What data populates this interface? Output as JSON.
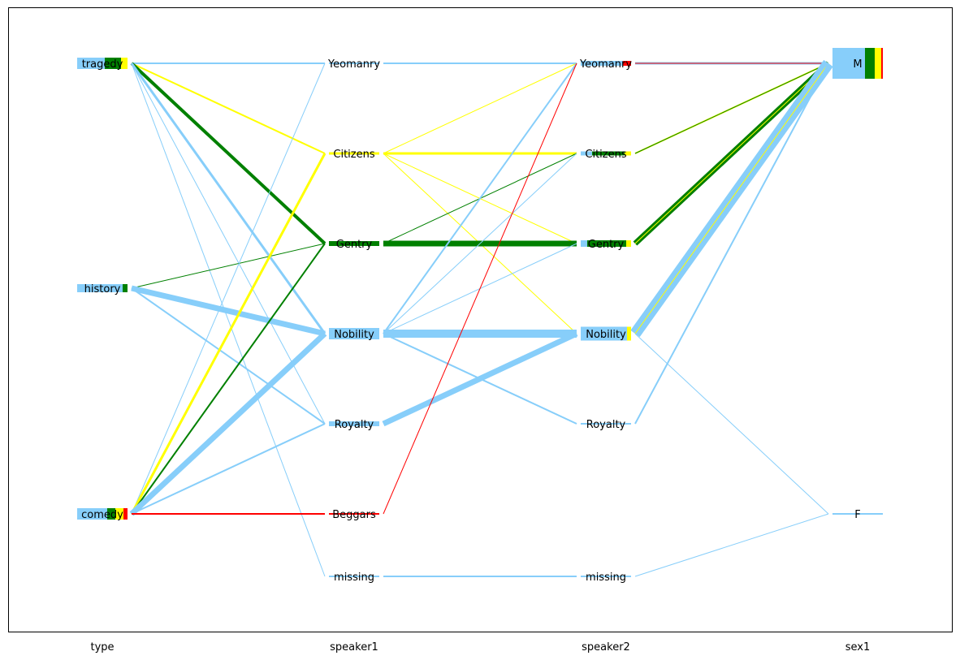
{
  "chart_data": {
    "type": "parallel-sets",
    "title": "",
    "xlabel": "",
    "ylabel": "",
    "dimensions": [
      "type",
      "speaker1",
      "speaker2",
      "sex1"
    ],
    "categories": {
      "type": [
        "tragedy",
        "history",
        "comedy"
      ],
      "speaker1": [
        "Yeomanry",
        "Citizens",
        "Gentry",
        "Nobility",
        "Royalty",
        "Beggars",
        "missing"
      ],
      "speaker2": [
        "Yeomanry",
        "Citizens",
        "Gentry",
        "Nobility",
        "Royalty",
        "missing"
      ],
      "sex1": [
        "M",
        "F"
      ]
    },
    "colors": {
      "nobility": "#87CEFA",
      "gentry": "#008000",
      "citizens": "#FFFF00",
      "beggars": "#FF0000"
    },
    "node_segments": {
      "type": {
        "tragedy": [
          [
            "nobility",
            34
          ],
          [
            "gentry",
            20
          ],
          [
            "citizens",
            8
          ]
        ],
        "history": [
          [
            "nobility",
            56
          ],
          [
            "gentry",
            6
          ]
        ],
        "comedy": [
          [
            "nobility",
            37
          ],
          [
            "gentry",
            10
          ],
          [
            "citizens",
            10
          ],
          [
            "beggars",
            5
          ]
        ]
      },
      "speaker1": {
        "Yeomanry": [
          [
            "nobility",
            2
          ]
        ],
        "Citizens": [
          [
            "citizens",
            3
          ]
        ],
        "Gentry": [
          [
            "gentry",
            62
          ]
        ],
        "Nobility": [
          [
            "nobility",
            62
          ]
        ],
        "Royalty": [
          [
            "nobility",
            62
          ]
        ],
        "Beggars": [
          [
            "beggars",
            2
          ]
        ],
        "missing": [
          [
            "nobility",
            2
          ]
        ]
      },
      "speaker2": {
        "Yeomanry": [
          [
            "nobility",
            52
          ],
          [
            "beggars",
            10
          ]
        ],
        "Citizens": [
          [
            "nobility",
            14
          ],
          [
            "gentry",
            40
          ],
          [
            "citizens",
            8
          ]
        ],
        "Gentry": [
          [
            "nobility",
            8
          ],
          [
            "gentry",
            48
          ],
          [
            "citizens",
            6
          ]
        ],
        "Nobility": [
          [
            "nobility",
            57
          ],
          [
            "citizens",
            5
          ]
        ],
        "Royalty": [
          [
            "nobility",
            2
          ]
        ],
        "missing": [
          [
            "nobility",
            2
          ]
        ]
      },
      "sex1": {
        "M": [
          [
            "nobility",
            40
          ],
          [
            "gentry",
            12
          ],
          [
            "citizens",
            8
          ],
          [
            "beggars",
            2
          ]
        ],
        "F": [
          [
            "nobility",
            62
          ]
        ]
      }
    },
    "flows": [
      {
        "from": [
          "type",
          "tragedy"
        ],
        "to": [
          "speaker1",
          "Yeomanry"
        ],
        "color": "nobility",
        "weight": 2
      },
      {
        "from": [
          "type",
          "tragedy"
        ],
        "to": [
          "speaker1",
          "Citizens"
        ],
        "color": "citizens",
        "weight": 2
      },
      {
        "from": [
          "type",
          "tragedy"
        ],
        "to": [
          "speaker1",
          "Gentry"
        ],
        "color": "gentry",
        "weight": 4
      },
      {
        "from": [
          "type",
          "tragedy"
        ],
        "to": [
          "speaker1",
          "Nobility"
        ],
        "color": "nobility",
        "weight": 3
      },
      {
        "from": [
          "type",
          "tragedy"
        ],
        "to": [
          "speaker1",
          "Royalty"
        ],
        "color": "nobility",
        "weight": 1
      },
      {
        "from": [
          "type",
          "tragedy"
        ],
        "to": [
          "speaker1",
          "missing"
        ],
        "color": "nobility",
        "weight": 1
      },
      {
        "from": [
          "type",
          "history"
        ],
        "to": [
          "speaker1",
          "Gentry"
        ],
        "color": "gentry",
        "weight": 1
      },
      {
        "from": [
          "type",
          "history"
        ],
        "to": [
          "speaker1",
          "Nobility"
        ],
        "color": "nobility",
        "weight": 7
      },
      {
        "from": [
          "type",
          "history"
        ],
        "to": [
          "speaker1",
          "Royalty"
        ],
        "color": "nobility",
        "weight": 2
      },
      {
        "from": [
          "type",
          "comedy"
        ],
        "to": [
          "speaker1",
          "Yeomanry"
        ],
        "color": "nobility",
        "weight": 1
      },
      {
        "from": [
          "type",
          "comedy"
        ],
        "to": [
          "speaker1",
          "Citizens"
        ],
        "color": "citizens",
        "weight": 3
      },
      {
        "from": [
          "type",
          "comedy"
        ],
        "to": [
          "speaker1",
          "Gentry"
        ],
        "color": "gentry",
        "weight": 2
      },
      {
        "from": [
          "type",
          "comedy"
        ],
        "to": [
          "speaker1",
          "Nobility"
        ],
        "color": "nobility",
        "weight": 7
      },
      {
        "from": [
          "type",
          "comedy"
        ],
        "to": [
          "speaker1",
          "Royalty"
        ],
        "color": "nobility",
        "weight": 2
      },
      {
        "from": [
          "type",
          "comedy"
        ],
        "to": [
          "speaker1",
          "Beggars"
        ],
        "color": "beggars",
        "weight": 2
      },
      {
        "from": [
          "speaker1",
          "Yeomanry"
        ],
        "to": [
          "speaker2",
          "Yeomanry"
        ],
        "color": "nobility",
        "weight": 2
      },
      {
        "from": [
          "speaker1",
          "Citizens"
        ],
        "to": [
          "speaker2",
          "Yeomanry"
        ],
        "color": "citizens",
        "weight": 1
      },
      {
        "from": [
          "speaker1",
          "Citizens"
        ],
        "to": [
          "speaker2",
          "Citizens"
        ],
        "color": "citizens",
        "weight": 3
      },
      {
        "from": [
          "speaker1",
          "Citizens"
        ],
        "to": [
          "speaker2",
          "Gentry"
        ],
        "color": "citizens",
        "weight": 1
      },
      {
        "from": [
          "speaker1",
          "Citizens"
        ],
        "to": [
          "speaker2",
          "Nobility"
        ],
        "color": "citizens",
        "weight": 1
      },
      {
        "from": [
          "speaker1",
          "Gentry"
        ],
        "to": [
          "speaker2",
          "Citizens"
        ],
        "color": "gentry",
        "weight": 1
      },
      {
        "from": [
          "speaker1",
          "Gentry"
        ],
        "to": [
          "speaker2",
          "Gentry"
        ],
        "color": "gentry",
        "weight": 7
      },
      {
        "from": [
          "speaker1",
          "Nobility"
        ],
        "to": [
          "speaker2",
          "Yeomanry"
        ],
        "color": "nobility",
        "weight": 2
      },
      {
        "from": [
          "speaker1",
          "Nobility"
        ],
        "to": [
          "speaker2",
          "Citizens"
        ],
        "color": "nobility",
        "weight": 1
      },
      {
        "from": [
          "speaker1",
          "Nobility"
        ],
        "to": [
          "speaker2",
          "Gentry"
        ],
        "color": "nobility",
        "weight": 1
      },
      {
        "from": [
          "speaker1",
          "Nobility"
        ],
        "to": [
          "speaker2",
          "Nobility"
        ],
        "color": "nobility",
        "weight": 10
      },
      {
        "from": [
          "speaker1",
          "Nobility"
        ],
        "to": [
          "speaker2",
          "Royalty"
        ],
        "color": "nobility",
        "weight": 2
      },
      {
        "from": [
          "speaker1",
          "Royalty"
        ],
        "to": [
          "speaker2",
          "Nobility"
        ],
        "color": "nobility",
        "weight": 7
      },
      {
        "from": [
          "speaker1",
          "Beggars"
        ],
        "to": [
          "speaker2",
          "Yeomanry"
        ],
        "color": "beggars",
        "weight": 1
      },
      {
        "from": [
          "speaker1",
          "missing"
        ],
        "to": [
          "speaker2",
          "missing"
        ],
        "color": "nobility",
        "weight": 2
      },
      {
        "from": [
          "speaker2",
          "Yeomanry"
        ],
        "to": [
          "sex1",
          "M"
        ],
        "color": "nobility",
        "weight": 3
      },
      {
        "from": [
          "speaker2",
          "Yeomanry"
        ],
        "to": [
          "sex1",
          "M"
        ],
        "color": "citizens",
        "weight": 1
      },
      {
        "from": [
          "speaker2",
          "Yeomanry"
        ],
        "to": [
          "sex1",
          "M"
        ],
        "color": "beggars",
        "weight": 1
      },
      {
        "from": [
          "speaker2",
          "Citizens"
        ],
        "to": [
          "sex1",
          "M"
        ],
        "color": "citizens",
        "weight": 2
      },
      {
        "from": [
          "speaker2",
          "Citizens"
        ],
        "to": [
          "sex1",
          "M"
        ],
        "color": "gentry",
        "weight": 1
      },
      {
        "from": [
          "speaker2",
          "Gentry"
        ],
        "to": [
          "sex1",
          "M"
        ],
        "color": "gentry",
        "weight": 7
      },
      {
        "from": [
          "speaker2",
          "Gentry"
        ],
        "to": [
          "sex1",
          "M"
        ],
        "color": "citizens",
        "weight": 1
      },
      {
        "from": [
          "speaker2",
          "Nobility"
        ],
        "to": [
          "sex1",
          "M"
        ],
        "color": "nobility",
        "weight": 14
      },
      {
        "from": [
          "speaker2",
          "Nobility"
        ],
        "to": [
          "sex1",
          "M"
        ],
        "color": "citizens",
        "weight": 1
      },
      {
        "from": [
          "speaker2",
          "Nobility"
        ],
        "to": [
          "sex1",
          "F"
        ],
        "color": "nobility",
        "weight": 1
      },
      {
        "from": [
          "speaker2",
          "Royalty"
        ],
        "to": [
          "sex1",
          "M"
        ],
        "color": "nobility",
        "weight": 2
      },
      {
        "from": [
          "speaker2",
          "missing"
        ],
        "to": [
          "sex1",
          "F"
        ],
        "color": "nobility",
        "weight": 1
      }
    ]
  }
}
